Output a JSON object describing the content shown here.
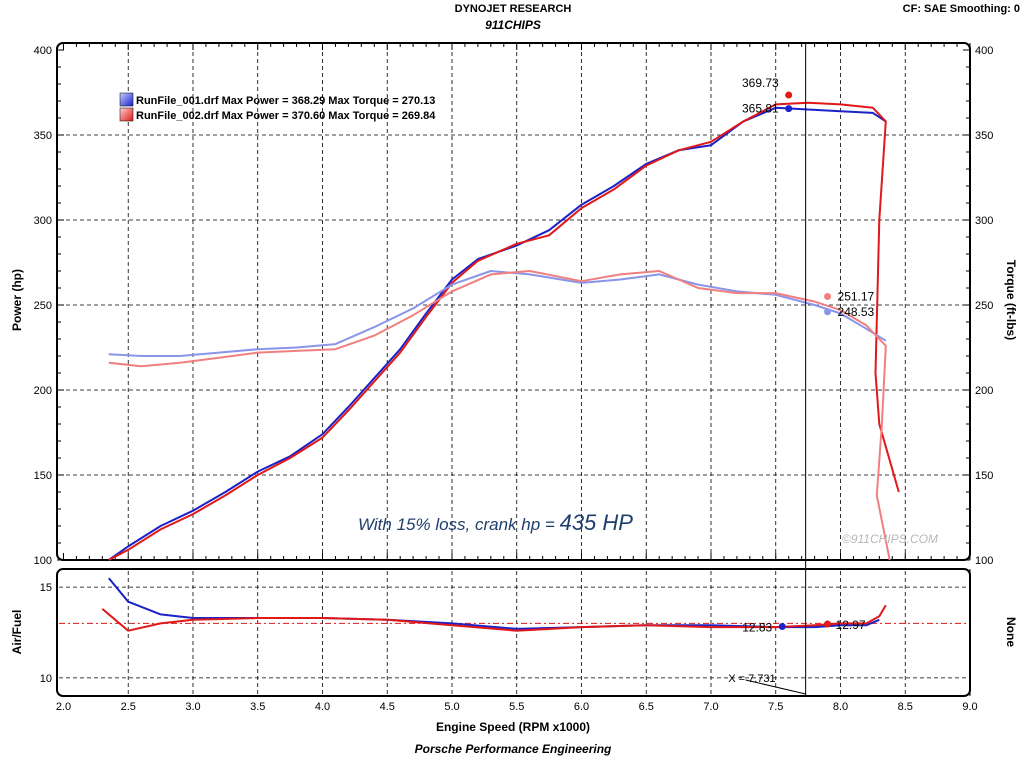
{
  "header": {
    "title": "DYNOJET RESEARCH",
    "subtitle": "911CHIPS",
    "settings": "CF: SAE  Smoothing: 0"
  },
  "footer": {
    "credit": "Porsche Performance Engineering"
  },
  "annotation": {
    "prefix": "With 15% loss, crank hp = ",
    "value": "435 HP"
  },
  "watermark": "©911CHIPS.COM",
  "colors": {
    "run1": "#1a22c8",
    "run1_light": "#8a95ea",
    "run2": "#e01818",
    "run2_light": "#f08080"
  },
  "chart_data": {
    "type": "line",
    "xlabel": "Engine Speed (RPM x1000)",
    "x_ticks": [
      "2.0",
      "2.5",
      "3.0",
      "3.5",
      "4.0",
      "4.5",
      "5.0",
      "5.5",
      "6.0",
      "6.5",
      "7.0",
      "7.5",
      "8.0",
      "8.5",
      "9.0"
    ],
    "xlim": [
      1.95,
      9.0
    ],
    "cursor_x": 7.731,
    "cursor_label": "X = 7.731",
    "upper": {
      "ylabel_left": "Power (hp)",
      "ylabel_right": "Torque (ft-lbs)",
      "ylim": [
        100,
        400
      ],
      "y_ticks": [
        "100",
        "150",
        "200",
        "250",
        "300",
        "350",
        "400"
      ],
      "legend": [
        {
          "name": "RunFile_001.drf Max Power = 368.29 Max Torque = 270.13",
          "color": "#1a22c8"
        },
        {
          "name": "RunFile_002.drf Max Power = 370.60 Max Torque = 269.84",
          "color": "#e01818"
        }
      ],
      "markers": [
        {
          "label": "369.73",
          "x": 7.6,
          "y": 373.5,
          "color": "#e01818"
        },
        {
          "label": "365.81",
          "x": 7.6,
          "y": 365.5,
          "color": "#1a22c8"
        },
        {
          "label": "251.17",
          "x": 7.9,
          "y": 255,
          "color": "#f08080"
        },
        {
          "label": "248.53",
          "x": 7.9,
          "y": 246,
          "color": "#8a95ea"
        }
      ],
      "series": [
        {
          "name": "RunFile_001.drf Power",
          "color": "#1a22c8",
          "x": [
            2.35,
            2.5,
            2.75,
            3.0,
            3.25,
            3.5,
            3.75,
            4.0,
            4.2,
            4.4,
            4.6,
            4.8,
            5.0,
            5.2,
            5.5,
            5.75,
            6.0,
            6.25,
            6.5,
            6.75,
            7.0,
            7.25,
            7.5,
            7.75,
            8.0,
            8.25,
            8.35
          ],
          "y": [
            100,
            108,
            120,
            129,
            140,
            152,
            161,
            174,
            190,
            207,
            224,
            245,
            265,
            277,
            285,
            294,
            309,
            320,
            333,
            341,
            344,
            358,
            366,
            365,
            364,
            363,
            358
          ]
        },
        {
          "name": "RunFile_002.drf Power",
          "color": "#e01818",
          "x": [
            2.35,
            2.5,
            2.75,
            3.0,
            3.25,
            3.5,
            3.75,
            4.0,
            4.2,
            4.4,
            4.6,
            4.8,
            5.0,
            5.2,
            5.5,
            5.75,
            6.0,
            6.25,
            6.5,
            6.75,
            7.0,
            7.25,
            7.5,
            7.75,
            8.0,
            8.25,
            8.35,
            8.3,
            8.27,
            8.3,
            8.45
          ],
          "y": [
            100,
            106,
            118,
            127,
            138,
            150,
            160,
            172,
            188,
            205,
            222,
            243,
            263,
            276,
            286,
            291,
            307,
            318,
            332,
            341,
            346,
            358,
            368,
            369,
            368,
            366,
            358,
            300,
            210,
            180,
            140
          ]
        },
        {
          "name": "RunFile_001.drf Torque",
          "color": "#8a95ea",
          "x": [
            2.35,
            2.6,
            2.9,
            3.2,
            3.5,
            3.8,
            4.1,
            4.4,
            4.7,
            5.0,
            5.3,
            5.6,
            6.0,
            6.3,
            6.6,
            6.9,
            7.2,
            7.5,
            7.8,
            8.0,
            8.2,
            8.35
          ],
          "y": [
            221,
            220,
            220,
            222,
            224,
            225,
            227,
            237,
            248,
            262,
            270,
            268,
            263,
            265,
            268,
            262,
            258,
            256,
            250,
            245,
            236,
            229
          ]
        },
        {
          "name": "RunFile_002.drf Torque",
          "color": "#f08080",
          "x": [
            2.35,
            2.6,
            2.9,
            3.2,
            3.5,
            3.8,
            4.1,
            4.4,
            4.7,
            5.0,
            5.3,
            5.6,
            6.0,
            6.3,
            6.6,
            6.9,
            7.2,
            7.5,
            7.8,
            8.0,
            8.2,
            8.35,
            8.32,
            8.28,
            8.38
          ],
          "y": [
            216,
            214,
            216,
            219,
            222,
            223,
            224,
            232,
            244,
            258,
            268,
            270,
            264,
            268,
            270,
            260,
            257,
            257,
            252,
            247,
            238,
            226,
            180,
            138,
            100
          ]
        }
      ]
    },
    "lower": {
      "ylabel_left": "Air/Fuel",
      "ylabel_right": "None",
      "ylim": [
        9,
        16
      ],
      "y_ticks": [
        "10",
        "15"
      ],
      "reference_y": 13,
      "markers": [
        {
          "label": "12.83",
          "x": 7.55,
          "y": 12.83,
          "color": "#1a22c8"
        },
        {
          "label": "12.97",
          "x": 7.9,
          "y": 12.97,
          "color": "#e01818"
        }
      ],
      "series": [
        {
          "name": "RunFile_001.drf Air/Fuel",
          "color": "#1a22c8",
          "x": [
            2.35,
            2.5,
            2.75,
            3.0,
            3.5,
            4.0,
            4.5,
            5.0,
            5.5,
            6.0,
            6.5,
            7.0,
            7.5,
            7.8,
            8.0,
            8.2,
            8.3
          ],
          "y": [
            15.5,
            14.2,
            13.5,
            13.3,
            13.3,
            13.3,
            13.2,
            13.0,
            12.7,
            12.8,
            12.9,
            12.9,
            12.8,
            12.8,
            12.9,
            12.9,
            13.2
          ]
        },
        {
          "name": "RunFile_002.drf Air/Fuel",
          "color": "#e01818",
          "x": [
            2.3,
            2.5,
            2.75,
            3.0,
            3.5,
            4.0,
            4.5,
            5.0,
            5.5,
            6.0,
            6.5,
            7.0,
            7.5,
            7.8,
            8.0,
            8.2,
            8.3,
            8.35
          ],
          "y": [
            13.8,
            12.6,
            13.0,
            13.2,
            13.3,
            13.3,
            13.2,
            12.9,
            12.6,
            12.8,
            12.9,
            12.8,
            12.8,
            12.9,
            13.0,
            13.0,
            13.4,
            14.0
          ]
        }
      ]
    }
  }
}
